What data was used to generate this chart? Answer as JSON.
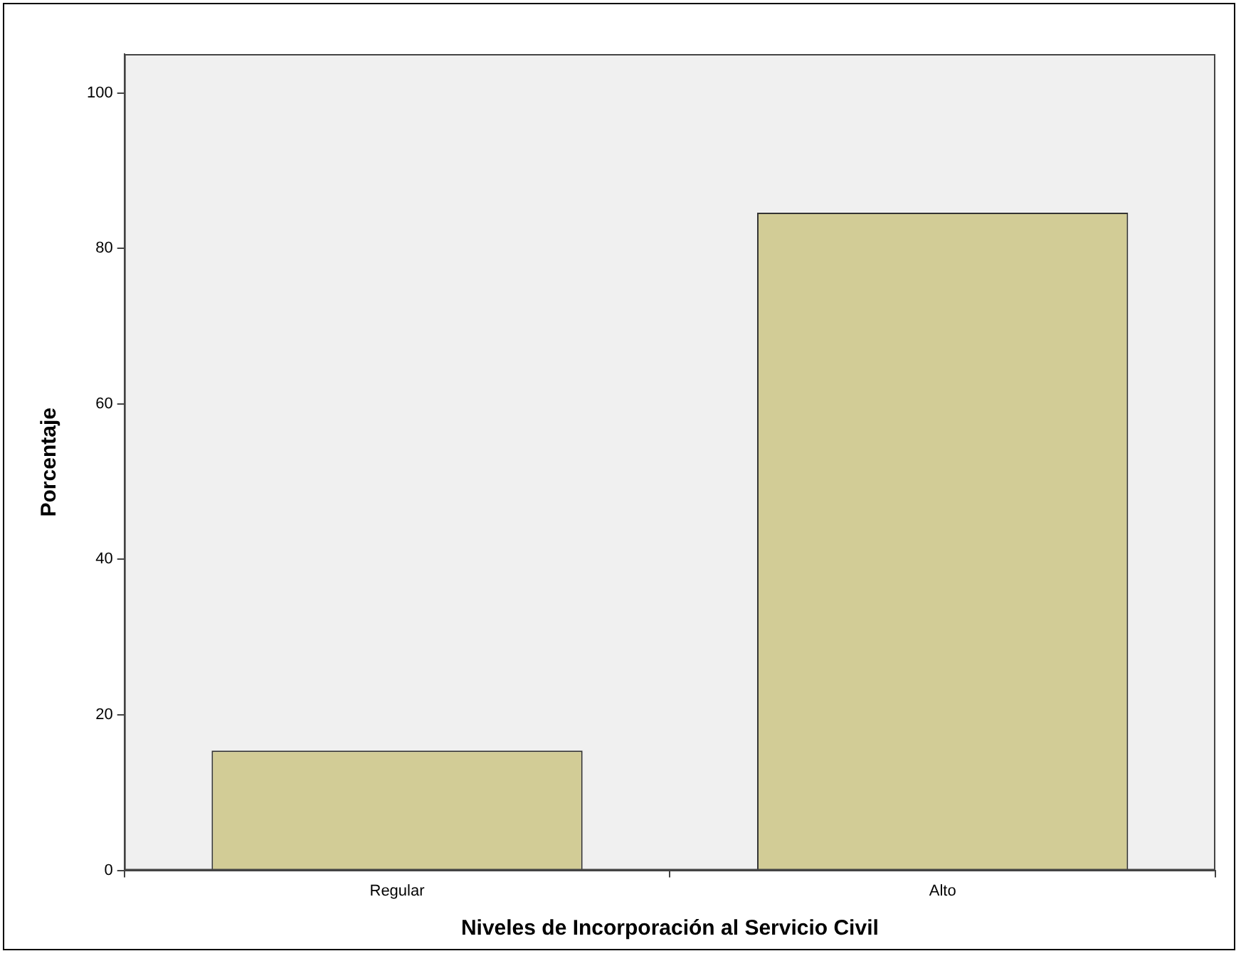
{
  "chart_data": {
    "type": "bar",
    "xlabel": "Niveles de Incorporación al Servicio Civil",
    "ylabel": "Porcentaje",
    "categories": [
      "Regular",
      "Alto"
    ],
    "values": [
      15.4,
      84.6
    ],
    "color": "#d2cc96",
    "ylim": [
      0,
      105
    ],
    "yticks": [
      0,
      20,
      40,
      60,
      80,
      100
    ],
    "grid": false,
    "legend": false
  }
}
